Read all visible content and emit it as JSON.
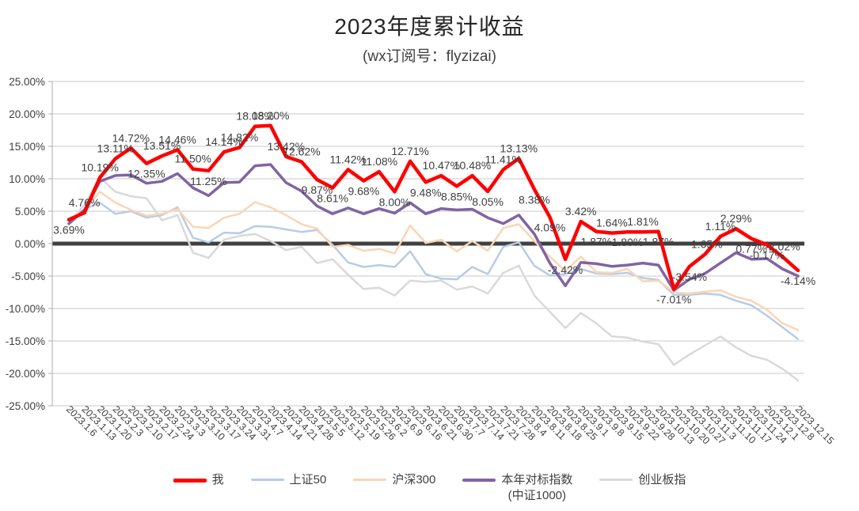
{
  "chart_data": {
    "type": "line",
    "title": "2023年度累计收益",
    "subtitle": "(wx订阅号：flyzizai)",
    "xlabel": "",
    "ylabel": "",
    "ylim": [
      -25,
      25
    ],
    "ytick_step": 5,
    "ytick_labels": [
      "25.00%",
      "20.00%",
      "15.00%",
      "10.00%",
      "5.00%",
      "0.00%",
      "-5.00%",
      "-10.00%",
      "-15.00%",
      "-20.00%",
      "-25.00%"
    ],
    "grid": true,
    "legend_position": "bottom",
    "grid_color": "#C9C9C9",
    "zero_line_color": "#404040",
    "text_color": "#404040",
    "categories": [
      "2023.1.6",
      "2023.1.13",
      "2023.1.20",
      "2023.2.3",
      "2023.2.10",
      "2023.2.17",
      "2023.2.24",
      "2023.3.3",
      "2023.3.10",
      "2023.3.17",
      "2023.3.24",
      "2023.3.31",
      "2023.4.7",
      "2023.4.14",
      "2023.4.21",
      "2023.4.28",
      "2023.5.5",
      "2023.5.12",
      "2023.5.19",
      "2023.5.26",
      "2023.6.2",
      "2023.6.9",
      "2023.6.16",
      "2023.6.21",
      "2023.6.30",
      "2023.7.7",
      "2023.7.14",
      "2023.7.21",
      "2023.7.28",
      "2023.8.4",
      "2023.8.11",
      "2023.8.18",
      "2023.8.25",
      "2023.9.1",
      "2023.9.8",
      "2023.9.15",
      "2023.9.22",
      "2023.9.28",
      "2023.10.13",
      "2023.10.20",
      "2023.10.27",
      "2023.11.3",
      "2023.11.10",
      "2023.11.17",
      "2023.11.24",
      "2023.12.1",
      "2023.12.8",
      "2023.12.15"
    ],
    "series": [
      {
        "name": "我",
        "color": "#FE0000",
        "line_width": 4.5,
        "show_labels": true,
        "label_format": "0.00%",
        "values": [
          3.69,
          4.76,
          10.19,
          13.11,
          14.72,
          12.35,
          13.51,
          14.46,
          11.5,
          11.25,
          14.14,
          14.82,
          18.08,
          18.2,
          13.42,
          12.62,
          9.87,
          8.61,
          11.42,
          9.68,
          11.08,
          8.0,
          12.71,
          9.48,
          10.47,
          8.85,
          10.48,
          8.05,
          11.41,
          13.13,
          8.38,
          4.09,
          -2.42,
          3.42,
          1.87,
          1.64,
          1.8,
          1.81,
          1.87,
          -7.01,
          -3.54,
          -1.65,
          1.11,
          2.29,
          0.77,
          -0.17,
          -2.02,
          -4.14
        ]
      },
      {
        "name": "上证50",
        "color": "#B8CCE4",
        "line_width": 2.5,
        "show_labels": false,
        "values": [
          3.3,
          5.3,
          6.3,
          4.6,
          5.0,
          4.0,
          4.4,
          5.6,
          0.9,
          0.2,
          1.7,
          1.6,
          2.7,
          2.6,
          2.2,
          1.8,
          2.1,
          -0.2,
          -2.9,
          -3.6,
          -3.3,
          -3.6,
          -1.2,
          -4.7,
          -5.4,
          -5.5,
          -3.6,
          -4.7,
          -0.5,
          0.2,
          -3.4,
          -4.9,
          -4.7,
          -3.9,
          -4.6,
          -4.7,
          -4.5,
          -5.3,
          -5.6,
          -7.9,
          -7.9,
          -7.7,
          -7.9,
          -8.8,
          -9.5,
          -11.1,
          -12.9,
          -14.7
        ]
      },
      {
        "name": "沪深300",
        "color": "#FBD5B5",
        "line_width": 2.5,
        "show_labels": false,
        "values": [
          2.9,
          5.2,
          8.0,
          6.3,
          5.2,
          4.3,
          4.6,
          5.3,
          2.6,
          2.4,
          4.0,
          4.6,
          6.4,
          5.6,
          4.4,
          3.0,
          2.3,
          -0.5,
          -0.2,
          -1.1,
          -0.8,
          -1.5,
          2.8,
          0.1,
          0.6,
          -1.2,
          0.4,
          -1.1,
          2.4,
          3.0,
          0.4,
          -2.0,
          -4.2,
          -2.0,
          -4.4,
          -4.5,
          -3.9,
          -5.8,
          -5.7,
          -7.5,
          -7.7,
          -7.4,
          -7.2,
          -8.2,
          -8.8,
          -10.2,
          -12.3,
          -13.3
        ]
      },
      {
        "name": "本年对标指数",
        "name_line2": "(中证1000)",
        "color": "#8064A2",
        "line_width": 3.5,
        "show_labels": false,
        "values": [
          3.1,
          5.2,
          9.6,
          10.5,
          10.6,
          9.3,
          9.6,
          10.8,
          8.6,
          7.4,
          9.4,
          9.5,
          12.0,
          12.2,
          9.4,
          8.1,
          5.8,
          4.6,
          5.5,
          4.6,
          5.4,
          4.7,
          6.3,
          4.6,
          5.4,
          5.2,
          5.3,
          4.0,
          3.1,
          4.4,
          1.5,
          -3.0,
          -6.5,
          -2.9,
          -3.1,
          -3.5,
          -3.3,
          -3.0,
          -3.3,
          -7.2,
          -5.5,
          -4.6,
          -3.0,
          -1.4,
          -2.4,
          -2.3,
          -3.9,
          -5.0
        ]
      },
      {
        "name": "创业板指",
        "color": "#D9D9D9",
        "line_width": 2.5,
        "show_labels": false,
        "values": [
          3.2,
          6.0,
          10.2,
          8.0,
          7.3,
          7.0,
          3.6,
          4.4,
          -1.4,
          -2.2,
          0.6,
          1.2,
          1.5,
          0.4,
          -1.0,
          -0.5,
          -3.0,
          -2.4,
          -4.8,
          -7.0,
          -6.8,
          -8.0,
          -5.7,
          -5.9,
          -5.7,
          -7.1,
          -6.6,
          -7.7,
          -4.5,
          -3.4,
          -8.0,
          -10.5,
          -13.0,
          -10.7,
          -12.3,
          -14.3,
          -14.5,
          -15.1,
          -15.5,
          -18.7,
          -17.1,
          -15.7,
          -14.3,
          -16.0,
          -17.3,
          -17.9,
          -19.3,
          -21.1
        ]
      }
    ]
  }
}
